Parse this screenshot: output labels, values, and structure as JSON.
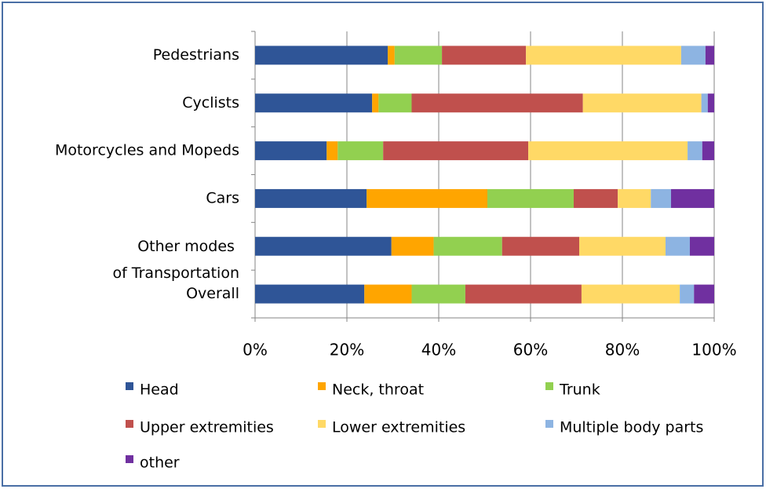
{
  "chart_data": {
    "type": "stacked_barh",
    "categories": [
      "Pedestrians",
      "Cyclists",
      "Motorcycles and Mopeds",
      "Cars ",
      "Other modes of Transportation",
      "Overall"
    ],
    "series": [
      {
        "name": "Head",
        "color": "#2f5597",
        "values": [
          28.9,
          25.5,
          15.6,
          24.3,
          29.7,
          23.8
        ]
      },
      {
        "name": "Neck, throat",
        "color": "#ffa500",
        "values": [
          1.5,
          1.4,
          2.4,
          26.3,
          9.2,
          10.3
        ]
      },
      {
        "name": "Trunk",
        "color": "#92d050",
        "values": [
          10.3,
          7.2,
          9.9,
          18.8,
          14.9,
          11.7
        ]
      },
      {
        "name": "Upper extremities",
        "color": "#c0504d",
        "values": [
          18.3,
          37.3,
          31.6,
          9.6,
          16.8,
          25.3
        ]
      },
      {
        "name": "Lower extremities",
        "color": "#ffd966",
        "values": [
          33.8,
          25.8,
          34.7,
          7.2,
          18.8,
          21.4
        ]
      },
      {
        "name": "Multiple body parts",
        "color": "#8db4e2",
        "values": [
          5.3,
          1.4,
          3.2,
          4.4,
          5.3,
          3.1
        ]
      },
      {
        "name": "other",
        "color": "#7030a0",
        "values": [
          1.9,
          1.4,
          2.6,
          9.4,
          5.3,
          4.4
        ]
      }
    ],
    "xlim": [
      0,
      100
    ],
    "xticks": [
      {
        "value": 0,
        "label": "0%"
      },
      {
        "value": 20,
        "label": "20%"
      },
      {
        "value": 40,
        "label": "40%"
      },
      {
        "value": 60,
        "label": "60%"
      },
      {
        "value": 80,
        "label": "80%"
      },
      {
        "value": 100,
        "label": "100%"
      }
    ],
    "grid": true
  }
}
